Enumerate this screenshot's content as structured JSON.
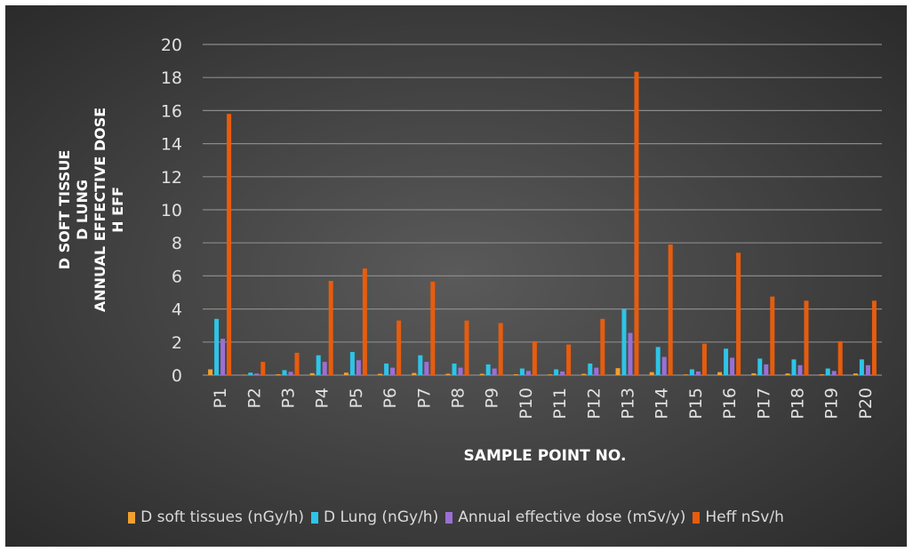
{
  "chart_data": {
    "type": "bar",
    "title": "",
    "xlabel": "SAMPLE POINT NO.",
    "ylabel_lines": [
      "D SOFT TISSUE",
      "D LUNG",
      "ANNUAL EFFECTIVE DOSE",
      "H EFF"
    ],
    "ylim": [
      0,
      20
    ],
    "yticks": [
      "0",
      "2",
      "4",
      "6",
      "8",
      "10",
      "12",
      "14",
      "16",
      "18",
      "20"
    ],
    "grid": true,
    "legend_position": "bottom",
    "categories": [
      "P1",
      "P2",
      "P3",
      "P4",
      "P5",
      "P6",
      "P7",
      "P8",
      "P9",
      "P10",
      "P11",
      "P12",
      "P13",
      "P14",
      "P15",
      "P16",
      "P17",
      "P18",
      "P19",
      "P20"
    ],
    "series": [
      {
        "name": "D soft tissues (nGy/h)",
        "color": "#f0a030",
        "values": [
          0.35,
          0.02,
          0.05,
          0.12,
          0.15,
          0.08,
          0.13,
          0.08,
          0.08,
          0.05,
          0.04,
          0.08,
          0.42,
          0.18,
          0.04,
          0.18,
          0.11,
          0.1,
          0.05,
          0.1
        ]
      },
      {
        "name": "D Lung (nGy/h)",
        "color": "#2ec4e8",
        "values": [
          3.4,
          0.15,
          0.3,
          1.2,
          1.4,
          0.7,
          1.2,
          0.7,
          0.65,
          0.4,
          0.35,
          0.7,
          4.0,
          1.7,
          0.35,
          1.6,
          1.0,
          0.95,
          0.4,
          0.95
        ]
      },
      {
        "name": "Annual effective dose (mSv/y)",
        "color": "#9b6fd4",
        "values": [
          2.2,
          0.1,
          0.2,
          0.8,
          0.9,
          0.45,
          0.8,
          0.45,
          0.4,
          0.25,
          0.22,
          0.45,
          2.55,
          1.1,
          0.22,
          1.05,
          0.65,
          0.6,
          0.25,
          0.6
        ]
      },
      {
        "name": "Heff nSv/h",
        "color": "#e85c0d",
        "values": [
          15.8,
          0.8,
          1.35,
          5.7,
          6.45,
          3.3,
          5.65,
          3.3,
          3.15,
          2.05,
          1.85,
          3.4,
          18.35,
          7.9,
          1.9,
          7.4,
          4.75,
          4.5,
          2.05,
          4.5
        ]
      }
    ]
  }
}
